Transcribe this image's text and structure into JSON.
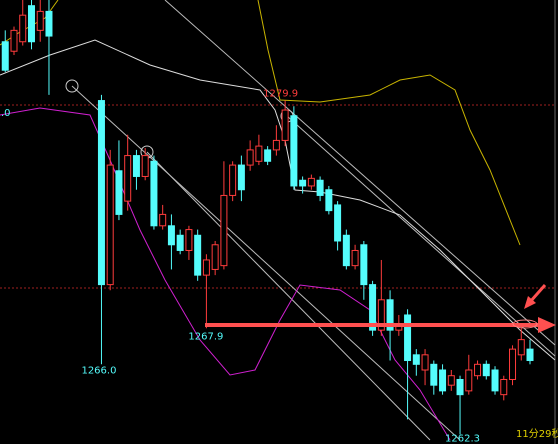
{
  "chart_data": {
    "type": "candlestick",
    "x": [
      0,
      1,
      2,
      3,
      4,
      5,
      11,
      12,
      13,
      14,
      15,
      16,
      17,
      18,
      19,
      20,
      21,
      22,
      23,
      24,
      25,
      26,
      27,
      28,
      29,
      30,
      31,
      32,
      33,
      34,
      35,
      36,
      37,
      38,
      39,
      40,
      41,
      42,
      43,
      44,
      45,
      46,
      47,
      48,
      49,
      50,
      51,
      52,
      53,
      54,
      55,
      56,
      57,
      58,
      59,
      60
    ],
    "open": [
      1283.0,
      1282.5,
      1283.0,
      1284.9,
      1283.6,
      1284.6,
      1279.9,
      1270.2,
      1276.2,
      1274.6,
      1277.0,
      1275.9,
      1276.7,
      1273.3,
      1273.3,
      1272.8,
      1272.0,
      1272.8,
      1270.7,
      1271.0,
      1271.2,
      1274.9,
      1276.5,
      1276.5,
      1276.7,
      1277.3,
      1277.3,
      1277.8,
      1279.1,
      1275.7,
      1275.4,
      1275.7,
      1275.2,
      1274.4,
      1272.8,
      1271.2,
      1272.3,
      1270.2,
      1267.8,
      1269.4,
      1267.8,
      1268.6,
      1266.5,
      1265.7,
      1266.0,
      1265.7,
      1264.9,
      1265.2,
      1264.6,
      1265.4,
      1266.0,
      1265.7,
      1264.4,
      1265.2,
      1266.5,
      1266.8
    ],
    "high": [
      1283.6,
      1283.8,
      1285.4,
      1285.5,
      1285.5,
      1285.5,
      1280.2,
      1277.3,
      1277.8,
      1278.1,
      1277.3,
      1277.4,
      1277.0,
      1274.4,
      1273.9,
      1273.1,
      1273.3,
      1273.1,
      1271.8,
      1272.5,
      1276.7,
      1276.7,
      1277.0,
      1277.8,
      1278.1,
      1277.5,
      1278.6,
      1279.9,
      1279.6,
      1275.9,
      1276.0,
      1275.9,
      1275.4,
      1274.6,
      1273.1,
      1272.3,
      1272.5,
      1270.4,
      1271.5,
      1269.9,
      1268.6,
      1268.9,
      1266.8,
      1266.8,
      1266.2,
      1266.0,
      1265.7,
      1265.4,
      1266.5,
      1266.2,
      1266.2,
      1265.9,
      1265.4,
      1267.0,
      1268.1,
      1267.3
    ],
    "low": [
      1281.4,
      1282.3,
      1282.8,
      1282.6,
      1283.0,
      1280.2,
      1266.0,
      1269.9,
      1273.6,
      1274.1,
      1275.2,
      1275.7,
      1273.1,
      1273.1,
      1271.0,
      1271.8,
      1271.5,
      1270.4,
      1267.9,
      1270.7,
      1271.0,
      1274.6,
      1274.6,
      1276.2,
      1276.5,
      1276.5,
      1277.0,
      1277.5,
      1275.2,
      1275.0,
      1275.2,
      1274.6,
      1273.9,
      1272.0,
      1271.0,
      1271.0,
      1269.4,
      1267.5,
      1267.5,
      1266.2,
      1267.5,
      1263.1,
      1265.4,
      1264.9,
      1264.4,
      1264.4,
      1264.6,
      1262.3,
      1264.4,
      1265.2,
      1265.2,
      1264.4,
      1264.1,
      1264.9,
      1266.2,
      1266.0
    ],
    "close": [
      1281.5,
      1283.6,
      1284.4,
      1283.0,
      1284.6,
      1283.3,
      1270.2,
      1276.5,
      1273.9,
      1277.0,
      1275.9,
      1277.0,
      1273.3,
      1273.9,
      1272.3,
      1272.0,
      1273.1,
      1270.7,
      1271.5,
      1272.3,
      1274.9,
      1276.5,
      1275.2,
      1277.3,
      1277.5,
      1276.7,
      1277.8,
      1279.4,
      1275.4,
      1275.4,
      1275.8,
      1274.9,
      1274.1,
      1272.5,
      1271.2,
      1272.0,
      1270.2,
      1267.8,
      1269.4,
      1267.8,
      1268.1,
      1266.2,
      1266.0,
      1266.5,
      1264.9,
      1264.6,
      1265.4,
      1264.4,
      1265.7,
      1266.0,
      1265.4,
      1264.6,
      1265.2,
      1266.8,
      1267.3,
      1266.2
    ],
    "xlim": [
      -0.6,
      63.2
    ],
    "ylim": [
      1261.8,
      1285.2
    ],
    "up_color": "#ff3c3c",
    "down_color": "#54fcfc",
    "annotations": [
      {
        "x": 32,
        "value": 1279.9,
        "label": "1279.9"
      },
      {
        "x": 23,
        "value": 1267.9,
        "label": "1267.9"
      },
      {
        "x": 11,
        "value": 1266.0,
        "label": "1266.0"
      },
      {
        "x": 52,
        "value": 1262.3,
        "label": "1262.3"
      }
    ],
    "left_label": ".0",
    "timer": "11分29秒"
  }
}
